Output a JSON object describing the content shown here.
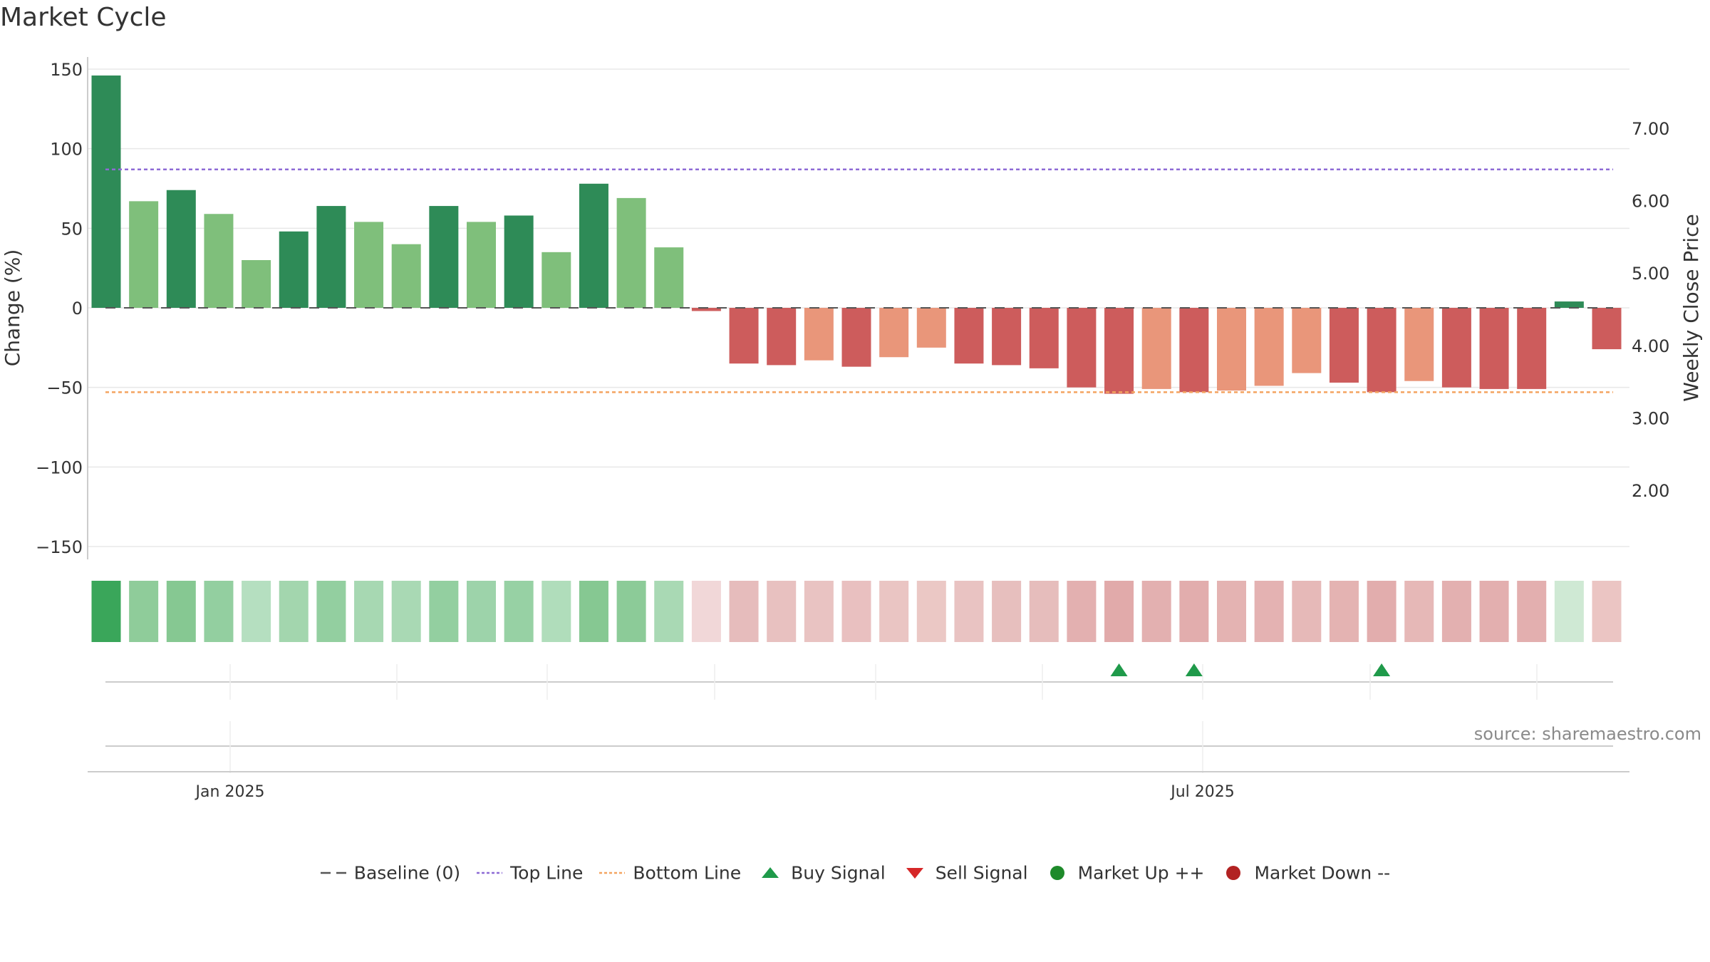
{
  "title": "Market Cycle",
  "source_text": "source: sharemaestro.com",
  "colors": {
    "strong_up": "#2e8b57",
    "up": "#7fbf7b",
    "strong_down": "#cd5c5c",
    "down": "#e9967a",
    "top_line": "#8e6bd6",
    "bottom_line": "#f4a460",
    "baseline": "#555555",
    "buy_signal": "#1f9a4a",
    "sell_signal": "#d62728",
    "market_up": "#1e8a2a",
    "market_down": "#b22222",
    "axis": "#cccccc",
    "grid": "#e8e8e8"
  },
  "chart_data": {
    "type": "bar",
    "title": "Market Cycle",
    "ylabel_left": "Change (%)",
    "ylabel_right": "Weekly Close Price",
    "ylim": [
      -150,
      150
    ],
    "yticks": [
      "150",
      "100",
      "50",
      "0",
      "−50",
      "−100",
      "−150"
    ],
    "y2lim": [
      1.0,
      8.0
    ],
    "y2ticks": [
      "7.00",
      "6.00",
      "5.00",
      "4.00",
      "3.00",
      "2.00"
    ],
    "xlabels": [
      "Jan 2025",
      "Jul 2025"
    ],
    "top_line": 87,
    "bottom_line": -53,
    "baseline": 0,
    "bars": [
      {
        "value": 146,
        "strength": "strong"
      },
      {
        "value": 67,
        "strength": "weak"
      },
      {
        "value": 74,
        "strength": "strong"
      },
      {
        "value": 59,
        "strength": "weak"
      },
      {
        "value": 30,
        "strength": "weak"
      },
      {
        "value": 48,
        "strength": "strong"
      },
      {
        "value": 64,
        "strength": "strong"
      },
      {
        "value": 54,
        "strength": "weak"
      },
      {
        "value": 40,
        "strength": "weak"
      },
      {
        "value": 64,
        "strength": "strong"
      },
      {
        "value": 54,
        "strength": "weak"
      },
      {
        "value": 58,
        "strength": "strong"
      },
      {
        "value": 35,
        "strength": "weak"
      },
      {
        "value": 78,
        "strength": "strong"
      },
      {
        "value": 69,
        "strength": "weak"
      },
      {
        "value": 38,
        "strength": "weak"
      },
      {
        "value": -2,
        "strength": "strong"
      },
      {
        "value": -35,
        "strength": "strong"
      },
      {
        "value": -36,
        "strength": "strong"
      },
      {
        "value": -33,
        "strength": "weak"
      },
      {
        "value": -37,
        "strength": "strong"
      },
      {
        "value": -31,
        "strength": "weak"
      },
      {
        "value": -25,
        "strength": "weak"
      },
      {
        "value": -35,
        "strength": "strong"
      },
      {
        "value": -36,
        "strength": "strong"
      },
      {
        "value": -38,
        "strength": "strong"
      },
      {
        "value": -50,
        "strength": "strong"
      },
      {
        "value": -54,
        "strength": "strong"
      },
      {
        "value": -51,
        "strength": "weak"
      },
      {
        "value": -53,
        "strength": "strong"
      },
      {
        "value": -52,
        "strength": "weak"
      },
      {
        "value": -49,
        "strength": "weak"
      },
      {
        "value": -41,
        "strength": "weak"
      },
      {
        "value": -47,
        "strength": "strong"
      },
      {
        "value": -53,
        "strength": "strong"
      },
      {
        "value": -46,
        "strength": "weak"
      },
      {
        "value": -50,
        "strength": "strong"
      },
      {
        "value": -51,
        "strength": "strong"
      },
      {
        "value": -51,
        "strength": "strong"
      },
      {
        "value": 4,
        "strength": "strong"
      },
      {
        "value": -26,
        "strength": "strong"
      }
    ],
    "heat_strip": [
      {
        "color": "#3aa65a"
      },
      {
        "color": "#8fcc9a"
      },
      {
        "color": "#86c892"
      },
      {
        "color": "#93cfa0"
      },
      {
        "color": "#b5dfc0"
      },
      {
        "color": "#a3d6ae"
      },
      {
        "color": "#93cfa0"
      },
      {
        "color": "#a7d8b2"
      },
      {
        "color": "#a9d9b4"
      },
      {
        "color": "#93cfa0"
      },
      {
        "color": "#9dd3aa"
      },
      {
        "color": "#97d1a4"
      },
      {
        "color": "#b0ddbb"
      },
      {
        "color": "#86c892"
      },
      {
        "color": "#8ccb98"
      },
      {
        "color": "#a9d9b4"
      },
      {
        "color": "#f1d7d8"
      },
      {
        "color": "#e6bcbc"
      },
      {
        "color": "#e8c1c0"
      },
      {
        "color": "#e9c3c2"
      },
      {
        "color": "#e9c0c0"
      },
      {
        "color": "#eac5c3"
      },
      {
        "color": "#ebc8c5"
      },
      {
        "color": "#e9c3c2"
      },
      {
        "color": "#e7bfbe"
      },
      {
        "color": "#e6bdbc"
      },
      {
        "color": "#e3b0b0"
      },
      {
        "color": "#e1aaaa"
      },
      {
        "color": "#e3b0b0"
      },
      {
        "color": "#e2adad"
      },
      {
        "color": "#e4b3b2"
      },
      {
        "color": "#e4b2b2"
      },
      {
        "color": "#e6b9b8"
      },
      {
        "color": "#e4b3b2"
      },
      {
        "color": "#e2adad"
      },
      {
        "color": "#e6b8b7"
      },
      {
        "color": "#e3b0b0"
      },
      {
        "color": "#e3afaf"
      },
      {
        "color": "#e3afaf"
      },
      {
        "color": "#cfe9d4"
      },
      {
        "color": "#ebc5c3"
      }
    ],
    "buy_signals": [
      27,
      29,
      34
    ],
    "sell_signals": [],
    "legend": [
      {
        "label": "Baseline (0)",
        "kind": "dash-line",
        "color": "#555555"
      },
      {
        "label": "Top Line",
        "kind": "dot-line",
        "color": "#8e6bd6"
      },
      {
        "label": "Bottom Line",
        "kind": "dot-line",
        "color": "#f4a460"
      },
      {
        "label": "Buy Signal",
        "kind": "triangle-up",
        "color": "#1f9a4a"
      },
      {
        "label": "Sell Signal",
        "kind": "triangle-down",
        "color": "#d62728"
      },
      {
        "label": "Market Up ++",
        "kind": "circle",
        "color": "#1e8a2a"
      },
      {
        "label": "Market Down --",
        "kind": "circle",
        "color": "#b22222"
      }
    ]
  }
}
